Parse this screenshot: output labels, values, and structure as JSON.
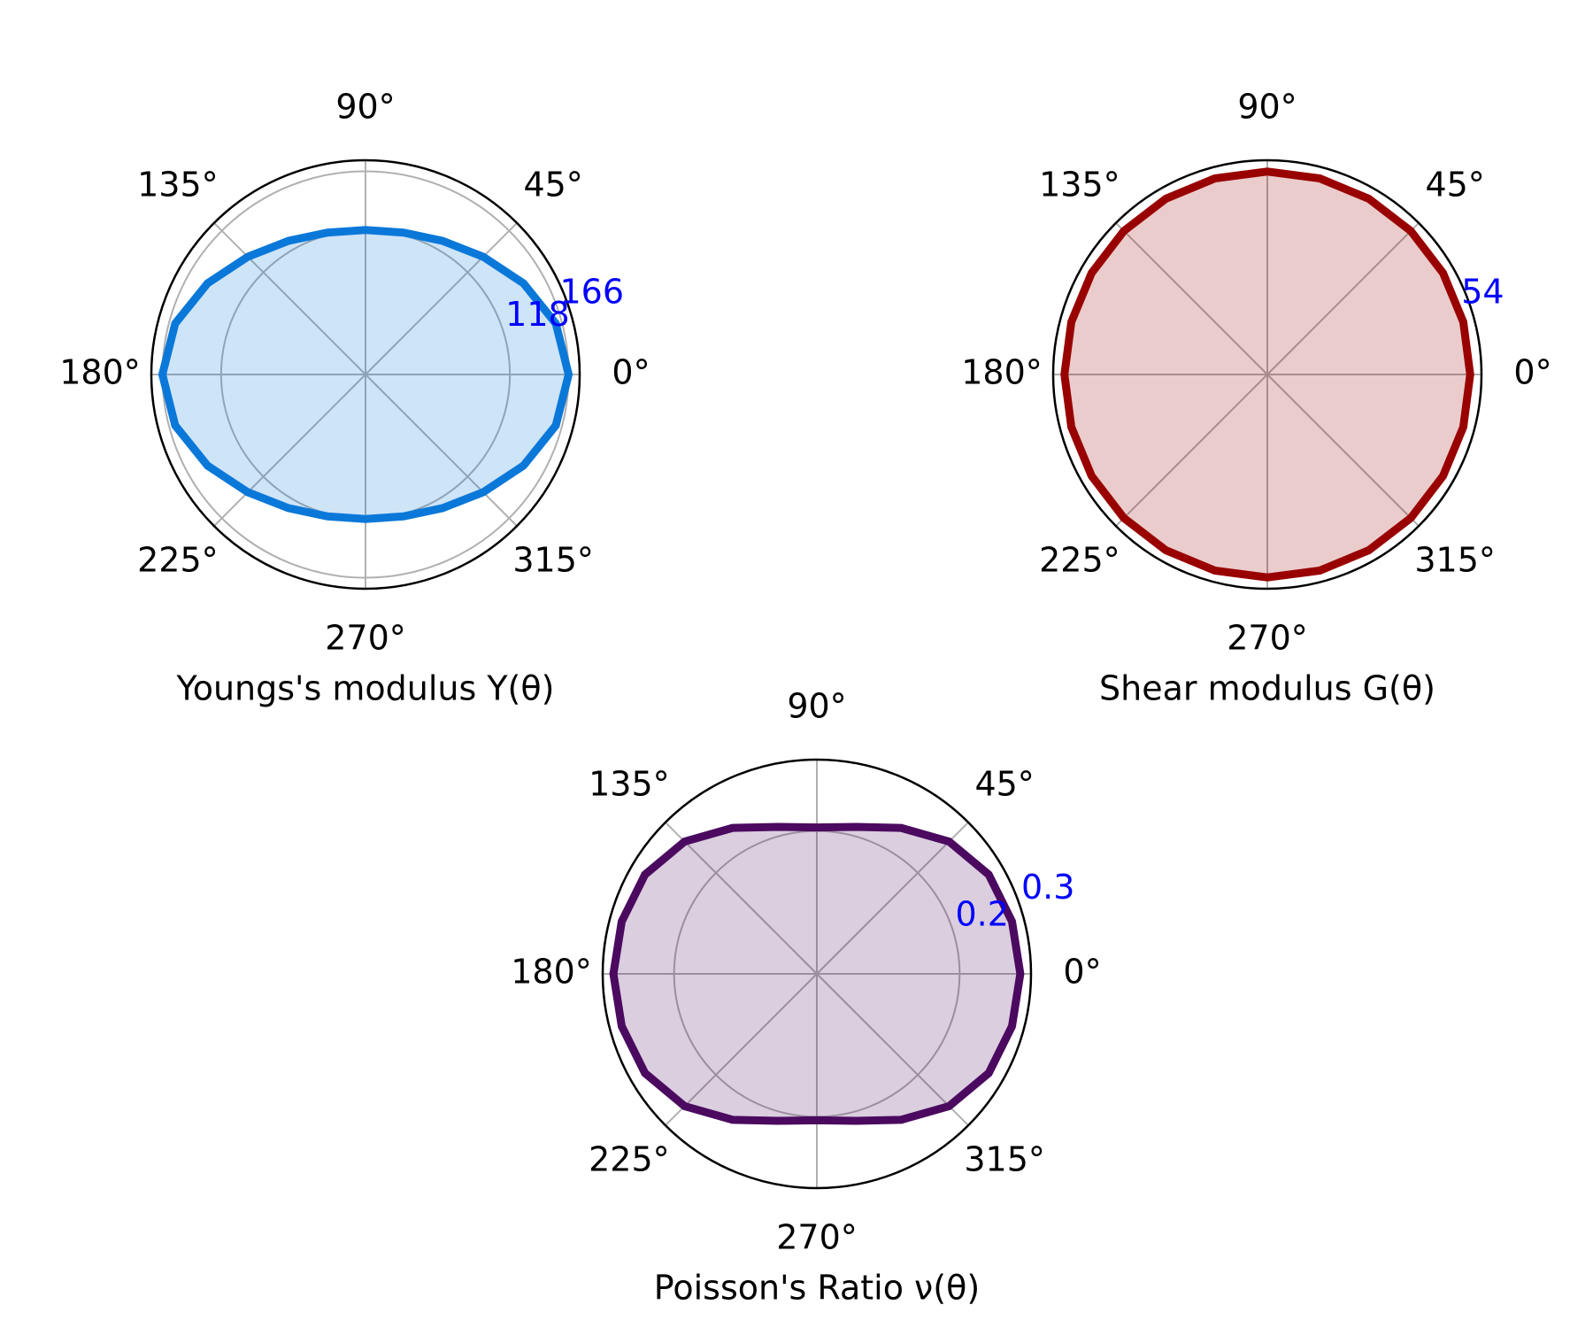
{
  "chart_data": [
    {
      "type": "polar",
      "title": "Youngs's modulus Y(θ)",
      "color": "#0a78d9",
      "theta": [
        0,
        15,
        30,
        45,
        60,
        75,
        90,
        105,
        120,
        135,
        150,
        165,
        180,
        195,
        210,
        225,
        240,
        255,
        270,
        285,
        300,
        315,
        330,
        345
      ],
      "values": [
        166,
        161,
        149,
        136,
        126,
        120,
        118,
        120,
        126,
        136,
        149,
        161,
        166,
        161,
        149,
        136,
        126,
        120,
        118,
        120,
        126,
        136,
        149,
        161
      ],
      "rlim": [
        0,
        175
      ],
      "rticks": [
        118,
        166
      ],
      "thetaticks": [
        {
          "value": 0,
          "label": "0°"
        },
        {
          "value": 45,
          "label": "45°"
        },
        {
          "value": 90,
          "label": "90°"
        },
        {
          "value": 135,
          "label": "135°"
        },
        {
          "value": 180,
          "label": "180°"
        },
        {
          "value": 225,
          "label": "225°"
        },
        {
          "value": 270,
          "label": "270°"
        },
        {
          "value": 315,
          "label": "315°"
        }
      ],
      "grid": true
    },
    {
      "type": "polar",
      "title": "Shear modulus G(θ)",
      "color": "#990000",
      "theta": [
        0,
        15,
        30,
        45,
        60,
        75,
        90,
        105,
        120,
        135,
        150,
        165,
        180,
        195,
        210,
        225,
        240,
        255,
        270,
        285,
        300,
        315,
        330,
        345
      ],
      "values": [
        54,
        54,
        54,
        54,
        54,
        54,
        54,
        54,
        54,
        54,
        54,
        54,
        54,
        54,
        54,
        54,
        54,
        54,
        54,
        54,
        54,
        54,
        54,
        54
      ],
      "rlim": [
        0,
        57
      ],
      "rticks": [
        54
      ],
      "thetaticks": [
        {
          "value": 0,
          "label": "0°"
        },
        {
          "value": 45,
          "label": "45°"
        },
        {
          "value": 90,
          "label": "90°"
        },
        {
          "value": 135,
          "label": "135°"
        },
        {
          "value": 180,
          "label": "180°"
        },
        {
          "value": 225,
          "label": "225°"
        },
        {
          "value": 270,
          "label": "270°"
        },
        {
          "value": 315,
          "label": "315°"
        }
      ],
      "grid": true
    },
    {
      "type": "polar",
      "title": "Poisson's Ratio ν(θ)",
      "color": "#4b0a5f",
      "theta": [
        0,
        15,
        30,
        45,
        60,
        75,
        90,
        105,
        120,
        135,
        150,
        165,
        180,
        195,
        210,
        225,
        240,
        255,
        270,
        285,
        300,
        315,
        330,
        345
      ],
      "values": [
        0.285,
        0.283,
        0.278,
        0.262,
        0.236,
        0.213,
        0.205,
        0.213,
        0.236,
        0.262,
        0.278,
        0.283,
        0.285,
        0.283,
        0.278,
        0.262,
        0.236,
        0.213,
        0.205,
        0.213,
        0.236,
        0.262,
        0.278,
        0.283
      ],
      "rlim": [
        0,
        0.3
      ],
      "rticks": [
        0.2,
        0.3
      ],
      "thetaticks": [
        {
          "value": 0,
          "label": "0°"
        },
        {
          "value": 45,
          "label": "45°"
        },
        {
          "value": 90,
          "label": "90°"
        },
        {
          "value": 135,
          "label": "135°"
        },
        {
          "value": 180,
          "label": "180°"
        },
        {
          "value": 225,
          "label": "225°"
        },
        {
          "value": 270,
          "label": "270°"
        },
        {
          "value": 315,
          "label": "315°"
        }
      ],
      "grid": true
    }
  ]
}
